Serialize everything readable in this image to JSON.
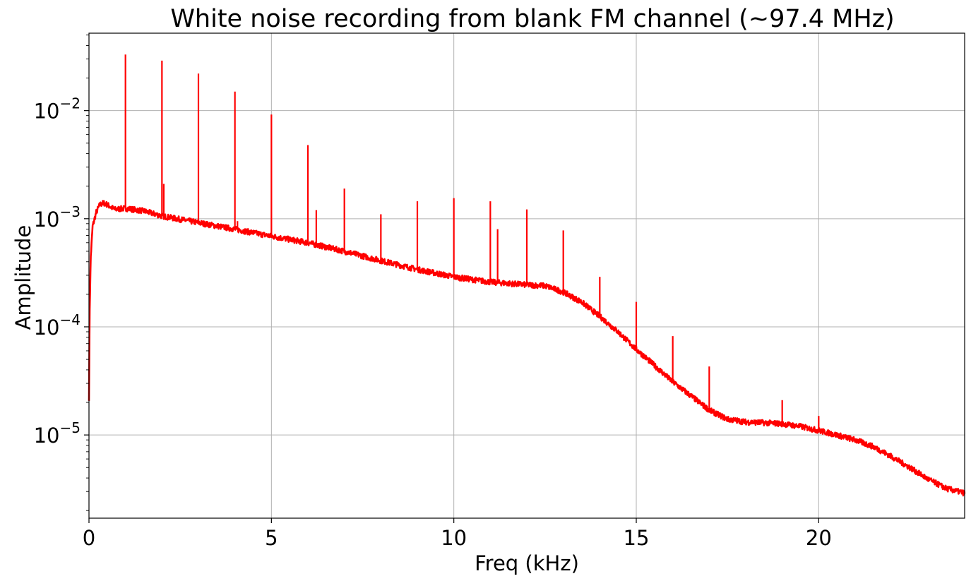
{
  "chart_data": {
    "type": "line",
    "title": "White noise recording from blank FM channel (~97.4 MHz)",
    "xlabel": "Freq (kHz)",
    "ylabel": "Amplitude",
    "xlim": [
      0,
      24
    ],
    "ylim": [
      1.7e-06,
      0.052
    ],
    "yscale": "log",
    "grid": true,
    "line_color": "#ff0000",
    "x_ticks": [
      {
        "value": 0,
        "label": "0"
      },
      {
        "value": 5,
        "label": "5"
      },
      {
        "value": 10,
        "label": "10"
      },
      {
        "value": 15,
        "label": "15"
      },
      {
        "value": 20,
        "label": "20"
      }
    ],
    "y_ticks": [
      {
        "value": 0.01,
        "base": "10",
        "exp": "−2"
      },
      {
        "value": 0.001,
        "base": "10",
        "exp": "−3"
      },
      {
        "value": 0.0001,
        "base": "10",
        "exp": "−4"
      },
      {
        "value": 1e-05,
        "base": "10",
        "exp": "−5"
      }
    ],
    "noise_floor": {
      "x": [
        0,
        0.02,
        0.05,
        0.1,
        0.2,
        0.3,
        0.4,
        0.5,
        0.7,
        1.0,
        1.5,
        2.0,
        3.0,
        4.0,
        5.0,
        6.0,
        7.0,
        8.0,
        9.0,
        10.0,
        11.0,
        12.0,
        12.5,
        13.0,
        13.5,
        14.0,
        14.5,
        15.0,
        15.5,
        16.0,
        16.5,
        17.0,
        17.5,
        18.0,
        18.5,
        19.0,
        19.5,
        20.0,
        20.5,
        21.0,
        21.5,
        22.0,
        22.5,
        23.0,
        23.5,
        24.0
      ],
      "y": [
        2.2e-05,
        0.00015,
        0.00045,
        0.00085,
        0.00115,
        0.00135,
        0.0014,
        0.00135,
        0.00122,
        0.00125,
        0.00118,
        0.00106,
        0.00092,
        0.0008,
        0.00069,
        0.0006,
        0.0005,
        0.00041,
        0.00034,
        0.00029,
        0.00026,
        0.000245,
        0.00024,
        0.00021,
        0.00017,
        0.000125,
        9e-05,
        6.2e-05,
        4.4e-05,
        3.1e-05,
        2.3e-05,
        1.7e-05,
        1.4e-05,
        1.32e-05,
        1.3e-05,
        1.27e-05,
        1.2e-05,
        1.1e-05,
        1e-05,
        9e-06,
        7.8e-06,
        6.3e-06,
        5e-06,
        3.9e-06,
        3.2e-06,
        2.9e-06
      ]
    },
    "peaks": [
      {
        "x": 1.0,
        "y": 0.033
      },
      {
        "x": 2.0,
        "y": 0.029
      },
      {
        "x": 2.05,
        "y": 0.0021
      },
      {
        "x": 3.0,
        "y": 0.022
      },
      {
        "x": 4.0,
        "y": 0.015
      },
      {
        "x": 4.07,
        "y": 0.00095
      },
      {
        "x": 5.0,
        "y": 0.0092
      },
      {
        "x": 6.0,
        "y": 0.0048
      },
      {
        "x": 6.23,
        "y": 0.0012
      },
      {
        "x": 7.0,
        "y": 0.0019
      },
      {
        "x": 8.0,
        "y": 0.0011
      },
      {
        "x": 9.0,
        "y": 0.00145
      },
      {
        "x": 10.0,
        "y": 0.00155
      },
      {
        "x": 11.0,
        "y": 0.00145
      },
      {
        "x": 11.2,
        "y": 0.0008
      },
      {
        "x": 12.0,
        "y": 0.00122
      },
      {
        "x": 13.0,
        "y": 0.00078
      },
      {
        "x": 14.0,
        "y": 0.00029
      },
      {
        "x": 15.0,
        "y": 0.00017
      },
      {
        "x": 16.0,
        "y": 8.2e-05
      },
      {
        "x": 17.0,
        "y": 4.3e-05
      },
      {
        "x": 19.0,
        "y": 2.1e-05
      },
      {
        "x": 20.0,
        "y": 1.5e-05
      }
    ]
  }
}
